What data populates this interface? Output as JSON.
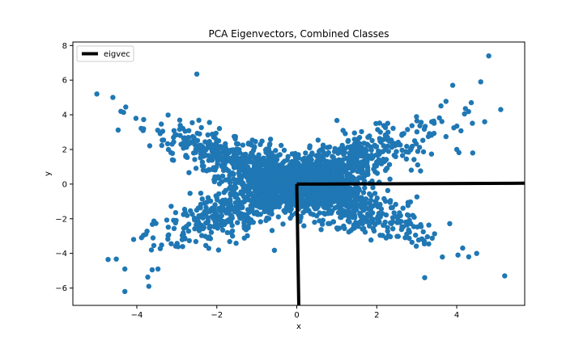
{
  "chart_data": {
    "type": "scatter",
    "title": "PCA Eigenvectors, Combined Classes",
    "xlabel": "x",
    "ylabel": "y",
    "xlim": [
      -5.6,
      5.7
    ],
    "ylim": [
      -7.0,
      8.2
    ],
    "xticks": [
      -4,
      -2,
      0,
      2,
      4
    ],
    "yticks": [
      -6,
      -4,
      -2,
      0,
      2,
      4,
      6,
      8
    ],
    "xtick_labels": [
      "−4",
      "−2",
      "0",
      "2",
      "4"
    ],
    "ytick_labels": [
      "−6",
      "−4",
      "−2",
      "0",
      "2",
      "4",
      "6",
      "8"
    ],
    "grid": false,
    "legend": {
      "placement": "top-left",
      "entries": [
        "eigvec"
      ]
    },
    "colors": {
      "points": "#1f77b4",
      "eigvec": "#000000"
    },
    "series": [
      {
        "type": "scatter",
        "distribution": "two crossing elongated clusters along y = x and y = -x, roughly within x in [-5, 5], y in [-6.2, 7.4]",
        "values": [
          {
            "x": 4.8,
            "y": 7.4
          },
          {
            "x": -5.0,
            "y": 5.2
          },
          {
            "x": -4.6,
            "y": 5.0
          },
          {
            "x": 5.2,
            "y": -5.3
          },
          {
            "x": -4.3,
            "y": -6.2
          },
          {
            "x": -2.5,
            "y": 6.35
          },
          {
            "x": 4.6,
            "y": 5.9
          },
          {
            "x": 3.9,
            "y": 5.7
          },
          {
            "x": 3.2,
            "y": -5.4
          },
          {
            "x": 4.3,
            "y": -4.2
          },
          {
            "x": 4.0,
            "y": 2.0
          },
          {
            "x": -3.7,
            "y": -5.9
          },
          {
            "x": 5.1,
            "y": 4.3
          },
          {
            "x": 4.7,
            "y": 3.6
          },
          {
            "x": 4.4,
            "y": 1.8
          },
          {
            "x": -4.3,
            "y": -4.9
          },
          {
            "x": -4.4,
            "y": 4.2
          },
          {
            "x": 4.5,
            "y": -4.0
          }
        ]
      },
      {
        "name": "eigvec",
        "type": "line",
        "segments": [
          [
            {
              "x": 0.0,
              "y": 0.0
            },
            {
              "x": 5.7,
              "y": 0.05
            }
          ],
          [
            {
              "x": 0.0,
              "y": 0.0
            },
            {
              "x": 0.05,
              "y": -7.0
            }
          ]
        ]
      }
    ]
  }
}
